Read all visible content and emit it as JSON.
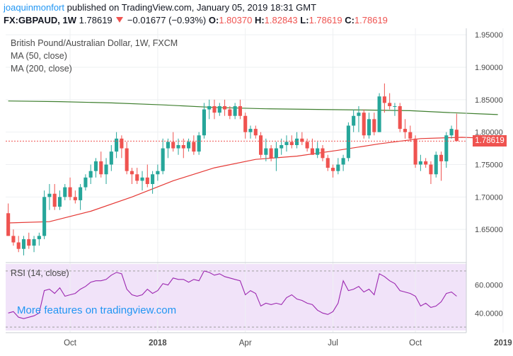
{
  "header": {
    "author": "joaquinmonfort",
    "published_text": "published on TradingView.com, January 05, 2019 18:31 GMT",
    "symbol": "FX:GBPAUD, 1W",
    "last": "1.78619",
    "change": "−0.01677 (−0.93%)",
    "o_label": "O:",
    "o_value": "1.80370",
    "h_label": "H:",
    "h_value": "1.82843",
    "l_label": "L:",
    "l_value": "1.78619",
    "c_label": "C:",
    "c_value": "1.78619"
  },
  "legend": {
    "title": "British Pound/Australian Dollar, 1W, FXCM",
    "ma50": "MA (50, close)",
    "ma200": "MA (200, close)",
    "rsi": "RSI (14, close)"
  },
  "price_tag": "1.78619",
  "promo": "More features on tradingview.com",
  "colors": {
    "up": "#26a69a",
    "down": "#ef5350",
    "ma50": "#e53935",
    "ma200": "#3f7f2f",
    "rsi_line": "#9c27b0",
    "rsi_band": "#f1e3f9"
  },
  "chart_data": [
    {
      "type": "candlestick",
      "title": "British Pound/Australian Dollar, 1W, FXCM",
      "xlabel": "",
      "ylabel": "",
      "ylim": [
        1.6,
        1.96
      ],
      "yticks": [
        1.65,
        1.7,
        1.75,
        1.8,
        1.85,
        1.9,
        1.95
      ],
      "ytick_labels": [
        "1.65000",
        "1.70000",
        "1.75000",
        "1.80000",
        "1.85000",
        "1.90000",
        "1.95000"
      ],
      "xticks": [
        12,
        29,
        46,
        63,
        79,
        96
      ],
      "xtick_labels": [
        "Oct",
        "2018",
        "Apr",
        "Jul",
        "Oct",
        "2019"
      ],
      "last_price": 1.78619,
      "candles": [
        [
          1.675,
          1.69,
          1.64,
          1.64
        ],
        [
          1.64,
          1.65,
          1.625,
          1.63
        ],
        [
          1.63,
          1.64,
          1.615,
          1.62
        ],
        [
          1.62,
          1.64,
          1.61,
          1.635
        ],
        [
          1.635,
          1.645,
          1.62,
          1.625
        ],
        [
          1.625,
          1.64,
          1.615,
          1.635
        ],
        [
          1.635,
          1.645,
          1.625,
          1.64
        ],
        [
          1.64,
          1.71,
          1.635,
          1.7
        ],
        [
          1.7,
          1.72,
          1.68,
          1.705
        ],
        [
          1.705,
          1.72,
          1.68,
          1.685
        ],
        [
          1.685,
          1.71,
          1.68,
          1.7
        ],
        [
          1.7,
          1.72,
          1.695,
          1.715
        ],
        [
          1.715,
          1.73,
          1.695,
          1.7
        ],
        [
          1.7,
          1.71,
          1.69,
          1.695
        ],
        [
          1.695,
          1.72,
          1.68,
          1.715
        ],
        [
          1.715,
          1.735,
          1.71,
          1.73
        ],
        [
          1.73,
          1.75,
          1.72,
          1.74
        ],
        [
          1.74,
          1.76,
          1.73,
          1.755
        ],
        [
          1.755,
          1.77,
          1.73,
          1.735
        ],
        [
          1.735,
          1.76,
          1.72,
          1.75
        ],
        [
          1.75,
          1.78,
          1.74,
          1.77
        ],
        [
          1.77,
          1.8,
          1.76,
          1.79
        ],
        [
          1.79,
          1.795,
          1.76,
          1.775
        ],
        [
          1.775,
          1.785,
          1.735,
          1.74
        ],
        [
          1.74,
          1.745,
          1.72,
          1.735
        ],
        [
          1.735,
          1.745,
          1.72,
          1.725
        ],
        [
          1.725,
          1.74,
          1.71,
          1.73
        ],
        [
          1.73,
          1.75,
          1.715,
          1.72
        ],
        [
          1.72,
          1.74,
          1.705,
          1.735
        ],
        [
          1.735,
          1.75,
          1.725,
          1.74
        ],
        [
          1.74,
          1.79,
          1.735,
          1.775
        ],
        [
          1.775,
          1.79,
          1.76,
          1.785
        ],
        [
          1.785,
          1.8,
          1.77,
          1.775
        ],
        [
          1.775,
          1.79,
          1.765,
          1.78
        ],
        [
          1.78,
          1.79,
          1.76,
          1.775
        ],
        [
          1.775,
          1.79,
          1.77,
          1.785
        ],
        [
          1.785,
          1.795,
          1.765,
          1.77
        ],
        [
          1.77,
          1.8,
          1.765,
          1.795
        ],
        [
          1.795,
          1.845,
          1.79,
          1.835
        ],
        [
          1.835,
          1.85,
          1.82,
          1.84
        ],
        [
          1.84,
          1.85,
          1.82,
          1.83
        ],
        [
          1.83,
          1.845,
          1.825,
          1.84
        ],
        [
          1.84,
          1.85,
          1.825,
          1.835
        ],
        [
          1.835,
          1.84,
          1.82,
          1.825
        ],
        [
          1.825,
          1.845,
          1.82,
          1.84
        ],
        [
          1.84,
          1.85,
          1.82,
          1.825
        ],
        [
          1.825,
          1.83,
          1.79,
          1.8
        ],
        [
          1.8,
          1.81,
          1.79,
          1.805
        ],
        [
          1.805,
          1.81,
          1.79,
          1.795
        ],
        [
          1.795,
          1.8,
          1.76,
          1.765
        ],
        [
          1.765,
          1.79,
          1.755,
          1.775
        ],
        [
          1.775,
          1.78,
          1.755,
          1.76
        ],
        [
          1.76,
          1.785,
          1.74,
          1.775
        ],
        [
          1.775,
          1.79,
          1.765,
          1.78
        ],
        [
          1.78,
          1.795,
          1.77,
          1.785
        ],
        [
          1.785,
          1.795,
          1.775,
          1.78
        ],
        [
          1.78,
          1.8,
          1.775,
          1.79
        ],
        [
          1.79,
          1.8,
          1.78,
          1.785
        ],
        [
          1.785,
          1.79,
          1.77,
          1.775
        ],
        [
          1.775,
          1.79,
          1.765,
          1.765
        ],
        [
          1.765,
          1.785,
          1.76,
          1.775
        ],
        [
          1.775,
          1.78,
          1.755,
          1.76
        ],
        [
          1.76,
          1.765,
          1.74,
          1.745
        ],
        [
          1.745,
          1.75,
          1.73,
          1.74
        ],
        [
          1.74,
          1.76,
          1.735,
          1.75
        ],
        [
          1.75,
          1.765,
          1.74,
          1.76
        ],
        [
          1.76,
          1.815,
          1.755,
          1.81
        ],
        [
          1.81,
          1.835,
          1.8,
          1.825
        ],
        [
          1.825,
          1.84,
          1.8,
          1.83
        ],
        [
          1.83,
          1.835,
          1.79,
          1.795
        ],
        [
          1.795,
          1.83,
          1.79,
          1.82
        ],
        [
          1.82,
          1.83,
          1.795,
          1.8
        ],
        [
          1.8,
          1.86,
          1.8,
          1.855
        ],
        [
          1.855,
          1.875,
          1.83,
          1.845
        ],
        [
          1.845,
          1.86,
          1.835,
          1.84
        ],
        [
          1.84,
          1.845,
          1.825,
          1.84
        ],
        [
          1.84,
          1.845,
          1.8,
          1.805
        ],
        [
          1.805,
          1.82,
          1.79,
          1.8
        ],
        [
          1.8,
          1.81,
          1.785,
          1.79
        ],
        [
          1.79,
          1.795,
          1.745,
          1.75
        ],
        [
          1.75,
          1.765,
          1.74,
          1.755
        ],
        [
          1.755,
          1.76,
          1.745,
          1.75
        ],
        [
          1.75,
          1.755,
          1.72,
          1.735
        ],
        [
          1.735,
          1.77,
          1.73,
          1.765
        ],
        [
          1.765,
          1.77,
          1.725,
          1.755
        ],
        [
          1.755,
          1.8,
          1.745,
          1.795
        ],
        [
          1.795,
          1.81,
          1.79,
          1.805
        ],
        [
          1.8037,
          1.82843,
          1.78619,
          1.78619
        ]
      ],
      "series": [
        {
          "name": "MA (50, close)",
          "points": [
            [
              0,
              1.66
            ],
            [
              8,
              1.662
            ],
            [
              16,
              1.678
            ],
            [
              24,
              1.7
            ],
            [
              32,
              1.725
            ],
            [
              40,
              1.745
            ],
            [
              48,
              1.758
            ],
            [
              56,
              1.763
            ],
            [
              64,
              1.772
            ],
            [
              72,
              1.782
            ],
            [
              80,
              1.79
            ],
            [
              88,
              1.792
            ],
            [
              95,
              1.79
            ]
          ]
        },
        {
          "name": "MA (200, close)",
          "points": [
            [
              0,
              1.848
            ],
            [
              10,
              1.847
            ],
            [
              20,
              1.845
            ],
            [
              30,
              1.842
            ],
            [
              40,
              1.838
            ],
            [
              50,
              1.836
            ],
            [
              60,
              1.835
            ],
            [
              70,
              1.834
            ],
            [
              78,
              1.833
            ],
            [
              86,
              1.83
            ],
            [
              92,
              1.828
            ],
            [
              95,
              1.827
            ]
          ]
        }
      ]
    },
    {
      "type": "line",
      "title": "RSI (14, close)",
      "xlabel": "",
      "ylabel": "",
      "ylim": [
        26,
        76
      ],
      "yticks": [
        40,
        60
      ],
      "ytick_labels": [
        "40.0000",
        "60.0000"
      ],
      "band": [
        30,
        70
      ],
      "series": [
        {
          "name": "RSI (14, close)",
          "values": [
            40,
            41,
            37,
            36,
            37,
            38,
            40,
            56,
            57,
            54,
            58,
            52,
            53,
            54,
            57,
            59,
            62,
            63,
            63,
            64,
            67,
            69,
            68,
            57,
            53,
            52,
            53,
            57,
            54,
            56,
            61,
            60,
            65,
            64,
            64,
            62,
            64,
            63,
            70,
            69,
            67,
            68,
            66,
            65,
            64,
            63,
            53,
            56,
            54,
            45,
            47,
            46,
            47,
            46,
            51,
            53,
            50,
            49,
            47,
            46,
            42,
            40,
            39,
            41,
            47,
            63,
            56,
            57,
            59,
            55,
            57,
            53,
            68,
            66,
            63,
            61,
            56,
            55,
            54,
            52,
            45,
            47,
            44,
            45,
            48,
            54,
            55,
            52
          ]
        }
      ]
    }
  ]
}
